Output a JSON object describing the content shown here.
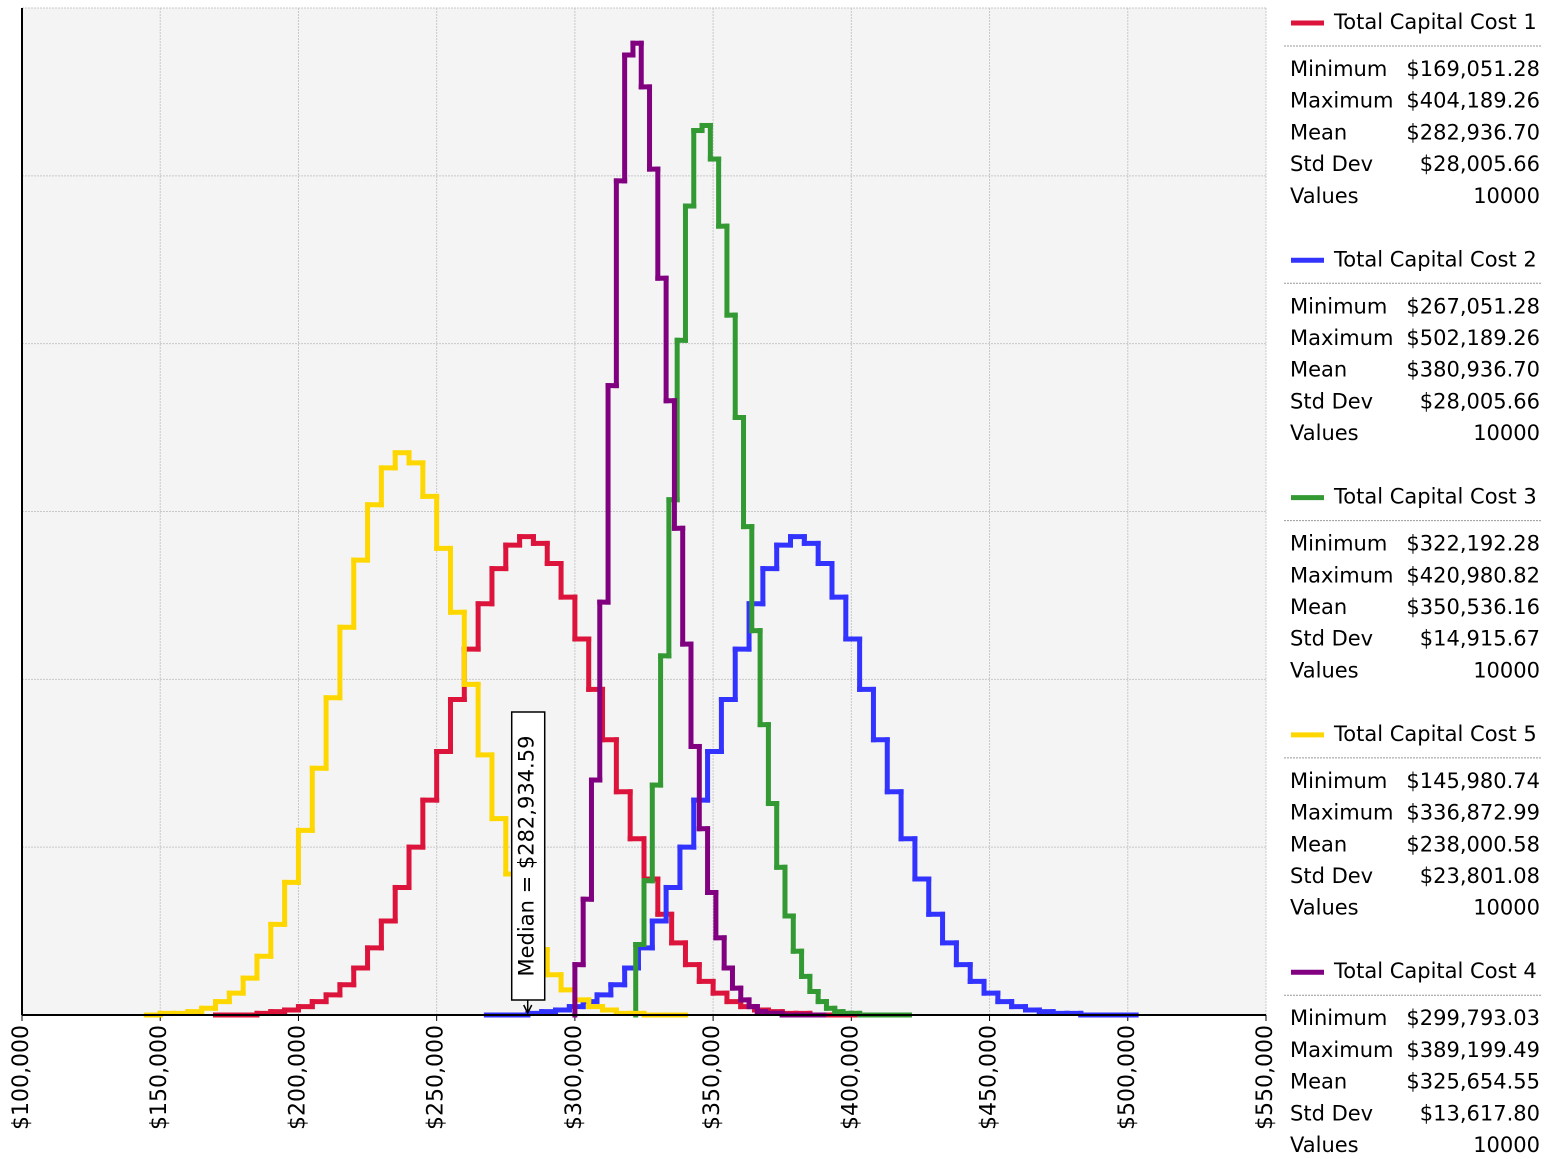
{
  "chart_data": {
    "type": "step-histogram",
    "xlim": [
      100000,
      550000
    ],
    "ylim": [
      0,
      6
    ],
    "yticks": [
      0,
      1,
      2,
      3,
      4,
      5,
      6
    ],
    "grid": true,
    "xticks": [
      {
        "value": 100000,
        "label": "$100,000"
      },
      {
        "value": 150000,
        "label": "$150,000"
      },
      {
        "value": 200000,
        "label": "$200,000"
      },
      {
        "value": 250000,
        "label": "$250,000"
      },
      {
        "value": 300000,
        "label": "$300,000"
      },
      {
        "value": 350000,
        "label": "$350,000"
      },
      {
        "value": 400000,
        "label": "$400,000"
      },
      {
        "value": 450000,
        "label": "$450,000"
      },
      {
        "value": 500000,
        "label": "$500,000"
      },
      {
        "value": 550000,
        "label": "$550,000"
      }
    ],
    "annotation": {
      "label": "Median = $282,934.59",
      "x": 282934.59
    },
    "series": [
      {
        "name": "Total Capital Cost 1",
        "color": "#dc143c",
        "bins": [
          170000,
          175000,
          180000,
          185000,
          190000,
          195000,
          200000,
          205000,
          210000,
          215000,
          220000,
          225000,
          230000,
          235000,
          240000,
          245000,
          250000,
          255000,
          260000,
          265000,
          270000,
          275000,
          280000,
          285000,
          290000,
          295000,
          300000,
          305000,
          310000,
          315000,
          320000,
          325000,
          330000,
          335000,
          340000,
          345000,
          350000,
          355000,
          360000,
          365000,
          370000,
          375000,
          380000,
          385000,
          390000,
          395000,
          400000,
          405000
        ],
        "values": [
          0,
          0,
          0,
          0.01,
          0.02,
          0.03,
          0.05,
          0.08,
          0.12,
          0.18,
          0.28,
          0.4,
          0.56,
          0.76,
          1.0,
          1.28,
          1.57,
          1.88,
          2.18,
          2.45,
          2.66,
          2.8,
          2.85,
          2.81,
          2.69,
          2.49,
          2.24,
          1.94,
          1.64,
          1.33,
          1.05,
          0.81,
          0.6,
          0.43,
          0.3,
          0.2,
          0.13,
          0.08,
          0.05,
          0.03,
          0.02,
          0.01,
          0.01,
          0,
          0,
          0,
          0
        ],
        "stats": [
          {
            "label": "Minimum",
            "value": "$169,051.28"
          },
          {
            "label": "Maximum",
            "value": "$404,189.26"
          },
          {
            "label": "Mean",
            "value": "$282,936.70"
          },
          {
            "label": "Std Dev",
            "value": "$28,005.66"
          },
          {
            "label": "Values",
            "value": "10000"
          }
        ]
      },
      {
        "name": "Total Capital Cost 2",
        "color": "#3333ff",
        "bins": [
          268000,
          273000,
          278000,
          283000,
          288000,
          293000,
          298000,
          303000,
          308000,
          313000,
          318000,
          323000,
          328000,
          333000,
          338000,
          343000,
          348000,
          353000,
          358000,
          363000,
          368000,
          373000,
          378000,
          383000,
          388000,
          393000,
          398000,
          403000,
          408000,
          413000,
          418000,
          423000,
          428000,
          433000,
          438000,
          443000,
          448000,
          453000,
          458000,
          463000,
          468000,
          473000,
          478000,
          483000,
          488000,
          493000,
          498000,
          503000
        ],
        "values": [
          0,
          0,
          0,
          0.01,
          0.02,
          0.03,
          0.05,
          0.08,
          0.12,
          0.18,
          0.28,
          0.4,
          0.56,
          0.76,
          1.0,
          1.28,
          1.57,
          1.88,
          2.18,
          2.45,
          2.66,
          2.8,
          2.85,
          2.81,
          2.69,
          2.49,
          2.24,
          1.94,
          1.64,
          1.33,
          1.05,
          0.81,
          0.6,
          0.43,
          0.3,
          0.2,
          0.13,
          0.08,
          0.05,
          0.03,
          0.02,
          0.01,
          0.01,
          0,
          0,
          0,
          0
        ],
        "stats": [
          {
            "label": "Minimum",
            "value": "$267,051.28"
          },
          {
            "label": "Maximum",
            "value": "$502,189.26"
          },
          {
            "label": "Mean",
            "value": "$380,936.70"
          },
          {
            "label": "Std Dev",
            "value": "$28,005.66"
          },
          {
            "label": "Values",
            "value": "10000"
          }
        ]
      },
      {
        "name": "Total Capital Cost 3",
        "color": "#339933",
        "bins": [
          322000,
          325000,
          328000,
          331000,
          334000,
          337000,
          340000,
          343000,
          346000,
          349000,
          352000,
          355000,
          358000,
          361000,
          364000,
          367000,
          370000,
          373000,
          376000,
          379000,
          382000,
          385000,
          388000,
          391000,
          394000,
          397000,
          400000,
          403000,
          406000,
          409000,
          412000,
          415000,
          418000,
          421000
        ],
        "values": [
          0.42,
          0.8,
          1.37,
          2.14,
          3.07,
          4.02,
          4.82,
          5.27,
          5.3,
          5.1,
          4.7,
          4.17,
          3.56,
          2.91,
          2.29,
          1.73,
          1.26,
          0.88,
          0.59,
          0.38,
          0.23,
          0.14,
          0.08,
          0.04,
          0.02,
          0.01,
          0.01,
          0,
          0,
          0,
          0,
          0,
          0
        ],
        "stats": [
          {
            "label": "Minimum",
            "value": "$322,192.28"
          },
          {
            "label": "Maximum",
            "value": "$420,980.82"
          },
          {
            "label": "Mean",
            "value": "$350,536.16"
          },
          {
            "label": "Std Dev",
            "value": "$14,915.67"
          },
          {
            "label": "Values",
            "value": "10000"
          }
        ]
      },
      {
        "name": "Total Capital Cost 5",
        "color": "#ffd700",
        "bins": [
          145000,
          150000,
          155000,
          160000,
          165000,
          170000,
          175000,
          180000,
          185000,
          190000,
          195000,
          200000,
          205000,
          210000,
          215000,
          220000,
          225000,
          230000,
          235000,
          240000,
          245000,
          250000,
          255000,
          260000,
          265000,
          270000,
          275000,
          280000,
          285000,
          290000,
          295000,
          300000,
          305000,
          310000,
          315000,
          320000,
          325000,
          330000,
          335000,
          340000
        ],
        "values": [
          0,
          0.01,
          0.01,
          0.02,
          0.04,
          0.08,
          0.13,
          0.22,
          0.35,
          0.54,
          0.79,
          1.1,
          1.47,
          1.89,
          2.31,
          2.71,
          3.04,
          3.26,
          3.35,
          3.29,
          3.09,
          2.78,
          2.4,
          1.97,
          1.55,
          1.17,
          0.84,
          0.58,
          0.39,
          0.24,
          0.15,
          0.09,
          0.05,
          0.03,
          0.01,
          0.01,
          0,
          0,
          0
        ],
        "stats": [
          {
            "label": "Minimum",
            "value": "$145,980.74"
          },
          {
            "label": "Maximum",
            "value": "$336,872.99"
          },
          {
            "label": "Mean",
            "value": "$238,000.58"
          },
          {
            "label": "Std Dev",
            "value": "$23,801.08"
          },
          {
            "label": "Values",
            "value": "10000"
          }
        ]
      },
      {
        "name": "Total Capital Cost 4",
        "color": "#800080",
        "bins": [
          300000,
          303000,
          306000,
          309000,
          312000,
          315000,
          318000,
          321000,
          324000,
          327000,
          330000,
          333000,
          336000,
          339000,
          342000,
          345000,
          348000,
          351000,
          354000,
          357000,
          360000,
          363000,
          366000,
          369000,
          372000,
          375000,
          378000,
          381000,
          384000,
          387000,
          390000
        ],
        "values": [
          0.3,
          0.69,
          1.4,
          2.46,
          3.75,
          4.97,
          5.72,
          5.79,
          5.53,
          5.04,
          4.39,
          3.66,
          2.9,
          2.21,
          1.6,
          1.11,
          0.73,
          0.46,
          0.28,
          0.16,
          0.09,
          0.05,
          0.02,
          0.01,
          0.01,
          0,
          0,
          0,
          0,
          0
        ],
        "stats": [
          {
            "label": "Minimum",
            "value": "$299,793.03"
          },
          {
            "label": "Maximum",
            "value": "$389,199.49"
          },
          {
            "label": "Mean",
            "value": "$325,654.55"
          },
          {
            "label": "Std Dev",
            "value": "$13,617.80"
          },
          {
            "label": "Values",
            "value": "10000"
          }
        ]
      }
    ]
  }
}
